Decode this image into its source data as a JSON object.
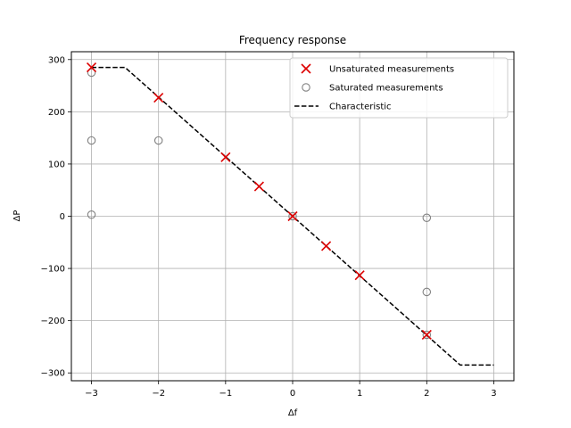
{
  "chart_data": {
    "type": "scatter",
    "title": "Frequency response",
    "xlabel": "Δf",
    "ylabel": "ΔP",
    "xlim": [
      -3.3,
      3.3
    ],
    "ylim": [
      -315,
      315
    ],
    "xticks": [
      -3,
      -2,
      -1,
      0,
      1,
      2,
      3
    ],
    "xtick_labels": [
      "−3",
      "−2",
      "−1",
      "0",
      "1",
      "2",
      "3"
    ],
    "yticks": [
      -300,
      -200,
      -100,
      0,
      100,
      200,
      300
    ],
    "ytick_labels": [
      "−300",
      "−200",
      "−100",
      "0",
      "100",
      "200",
      "300"
    ],
    "grid": true,
    "legend_position": "top-right",
    "series": [
      {
        "name": "Unsaturated measurements",
        "marker": "x",
        "color": "#dd0000",
        "points": [
          [
            -3,
            285
          ],
          [
            -2,
            227
          ],
          [
            -1,
            113
          ],
          [
            -0.5,
            57
          ],
          [
            0,
            0
          ],
          [
            0.5,
            -57
          ],
          [
            1,
            -113
          ],
          [
            2,
            -227
          ]
        ]
      },
      {
        "name": "Saturated measurements",
        "marker": "circle-open",
        "color": "#808080",
        "points": [
          [
            -3,
            275
          ],
          [
            -3,
            145
          ],
          [
            -3,
            3
          ],
          [
            -2,
            145
          ],
          [
            0,
            0
          ],
          [
            2,
            -3
          ],
          [
            2,
            -145
          ],
          [
            2,
            -227
          ]
        ]
      },
      {
        "name": "Characteristic",
        "marker": "dashed-line",
        "color": "#000000",
        "points": [
          [
            -3,
            285
          ],
          [
            -2.5,
            285
          ],
          [
            2.5,
            -285
          ],
          [
            3,
            -285
          ]
        ]
      }
    ]
  }
}
